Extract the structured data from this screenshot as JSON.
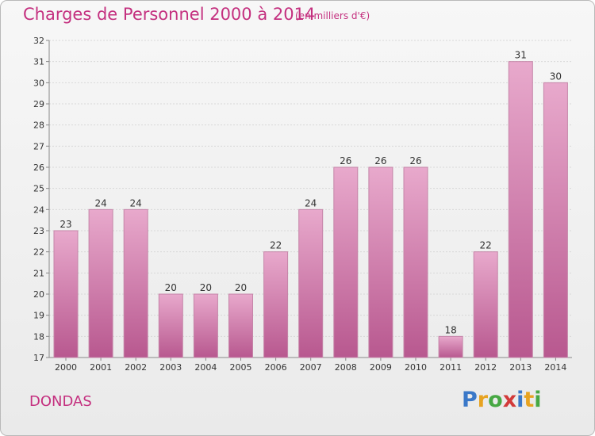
{
  "header": {
    "title": "Charges de Personnel 2000 à 2014",
    "unit": "(en milliers d'€)"
  },
  "footer": {
    "commune": "DONDAS",
    "logo_letters": [
      "P",
      "r",
      "o",
      "x",
      "i",
      "t",
      "i"
    ],
    "logo_colors": [
      "#3a78c8",
      "#e7a321",
      "#47a843",
      "#d23a3a",
      "#3a78c8",
      "#e7a321",
      "#47a843"
    ]
  },
  "colors": {
    "title": "#c4307f",
    "bar_top": "#e8a9cc",
    "bar_bottom": "#b8588f",
    "bar_stroke": "#c585a8",
    "grid": "#d8d8d8"
  },
  "chart_data": {
    "type": "bar",
    "title": "Charges de Personnel 2000 à 2014",
    "subtitle": "(en milliers d'€)",
    "categories": [
      "2000",
      "2001",
      "2002",
      "2003",
      "2004",
      "2005",
      "2006",
      "2007",
      "2008",
      "2009",
      "2010",
      "2011",
      "2012",
      "2013",
      "2014"
    ],
    "values": [
      23,
      24,
      24,
      20,
      20,
      20,
      22,
      24,
      26,
      26,
      26,
      18,
      22,
      31,
      30
    ],
    "ylim": [
      17,
      32
    ],
    "yticks": [
      17,
      18,
      19,
      20,
      21,
      22,
      23,
      24,
      25,
      26,
      27,
      28,
      29,
      30,
      31,
      32
    ],
    "grid": true,
    "data_labels": true
  }
}
